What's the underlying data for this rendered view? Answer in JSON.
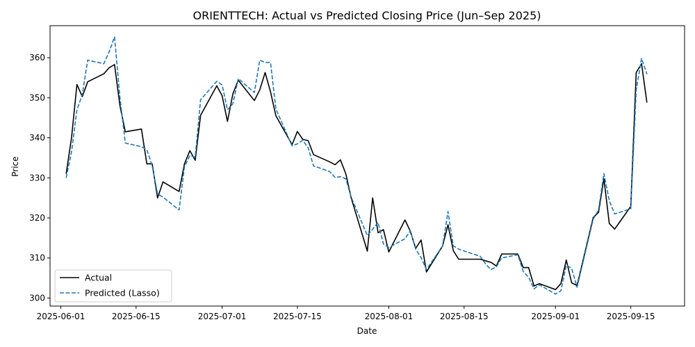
{
  "chart_data": {
    "type": "line",
    "title": "ORIENTTECH: Actual vs Predicted Closing Price (Jun–Sep 2025)",
    "xlabel": "Date",
    "ylabel": "Price",
    "xlim": [
      "2025-05-30",
      "2025-09-25"
    ],
    "ylim": [
      298,
      368
    ],
    "x_ticks": [
      "2025-06-01",
      "2025-06-15",
      "2025-07-01",
      "2025-07-15",
      "2025-08-01",
      "2025-08-15",
      "2025-09-01",
      "2025-09-15"
    ],
    "y_ticks": [
      300,
      310,
      320,
      330,
      340,
      350,
      360
    ],
    "grid": false,
    "legend_position": "lower-left",
    "series": [
      {
        "name": "Actual",
        "color": "#000000",
        "style": "solid",
        "points": [
          [
            "2025-06-02",
            331.0
          ],
          [
            "2025-06-03",
            340.0
          ],
          [
            "2025-06-04",
            353.3
          ],
          [
            "2025-06-05",
            350.3
          ],
          [
            "2025-06-06",
            354.0
          ],
          [
            "2025-06-09",
            356.0
          ],
          [
            "2025-06-10",
            357.5
          ],
          [
            "2025-06-11",
            358.3
          ],
          [
            "2025-06-12",
            348.0
          ],
          [
            "2025-06-13",
            341.5
          ],
          [
            "2025-06-16",
            342.2
          ],
          [
            "2025-06-17",
            333.5
          ],
          [
            "2025-06-18",
            333.5
          ],
          [
            "2025-06-19",
            325.0
          ],
          [
            "2025-06-20",
            329.0
          ],
          [
            "2025-06-23",
            326.6
          ],
          [
            "2025-06-24",
            333.5
          ],
          [
            "2025-06-25",
            336.8
          ],
          [
            "2025-06-26",
            334.4
          ],
          [
            "2025-06-27",
            345.6
          ],
          [
            "2025-06-30",
            353.0
          ],
          [
            "2025-07-01",
            350.5
          ],
          [
            "2025-07-02",
            344.1
          ],
          [
            "2025-07-03",
            351.0
          ],
          [
            "2025-07-04",
            354.4
          ],
          [
            "2025-07-07",
            349.3
          ],
          [
            "2025-07-08",
            352.0
          ],
          [
            "2025-07-09",
            356.3
          ],
          [
            "2025-07-10",
            351.5
          ],
          [
            "2025-07-11",
            345.5
          ],
          [
            "2025-07-14",
            338.3
          ],
          [
            "2025-07-15",
            341.6
          ],
          [
            "2025-07-16",
            339.6
          ],
          [
            "2025-07-17",
            339.3
          ],
          [
            "2025-07-18",
            335.8
          ],
          [
            "2025-07-21",
            334.0
          ],
          [
            "2025-07-22",
            333.3
          ],
          [
            "2025-07-23",
            334.5
          ],
          [
            "2025-07-24",
            331.0
          ],
          [
            "2025-07-25",
            325.0
          ],
          [
            "2025-07-28",
            311.7
          ],
          [
            "2025-07-29",
            325.0
          ],
          [
            "2025-07-30",
            316.3
          ],
          [
            "2025-07-31",
            317.1
          ],
          [
            "2025-08-01",
            311.5
          ],
          [
            "2025-08-04",
            319.5
          ],
          [
            "2025-08-05",
            316.7
          ],
          [
            "2025-08-06",
            312.4
          ],
          [
            "2025-08-07",
            314.5
          ],
          [
            "2025-08-08",
            306.5
          ],
          [
            "2025-08-11",
            313.0
          ],
          [
            "2025-08-12",
            318.3
          ],
          [
            "2025-08-13",
            311.8
          ],
          [
            "2025-08-14",
            309.7
          ],
          [
            "2025-08-18",
            309.7
          ],
          [
            "2025-08-19",
            309.3
          ],
          [
            "2025-08-20",
            308.9
          ],
          [
            "2025-08-21",
            308.0
          ],
          [
            "2025-08-22",
            311.0
          ],
          [
            "2025-08-25",
            311.0
          ],
          [
            "2025-08-26",
            307.6
          ],
          [
            "2025-08-27",
            307.6
          ],
          [
            "2025-08-28",
            303.0
          ],
          [
            "2025-08-29",
            303.6
          ],
          [
            "2025-09-01",
            302.1
          ],
          [
            "2025-09-02",
            303.6
          ],
          [
            "2025-09-03",
            309.5
          ],
          [
            "2025-09-04",
            303.8
          ],
          [
            "2025-09-05",
            303.1
          ],
          [
            "2025-09-08",
            320.1
          ],
          [
            "2025-09-09",
            321.4
          ],
          [
            "2025-09-10",
            329.8
          ],
          [
            "2025-09-11",
            318.6
          ],
          [
            "2025-09-12",
            317.2
          ],
          [
            "2025-09-15",
            322.9
          ],
          [
            "2025-09-16",
            356.3
          ],
          [
            "2025-09-17",
            358.5
          ],
          [
            "2025-09-18",
            348.8
          ]
        ]
      },
      {
        "name": "Predicted (Lasso)",
        "color": "#1f77b4",
        "style": "dashed",
        "points": [
          [
            "2025-06-02",
            330.0
          ],
          [
            "2025-06-03",
            336.5
          ],
          [
            "2025-06-04",
            347.0
          ],
          [
            "2025-06-05",
            350.8
          ],
          [
            "2025-06-06",
            359.4
          ],
          [
            "2025-06-09",
            358.5
          ],
          [
            "2025-06-10",
            361.5
          ],
          [
            "2025-06-11",
            365.2
          ],
          [
            "2025-06-12",
            350.0
          ],
          [
            "2025-06-13",
            338.7
          ],
          [
            "2025-06-16",
            337.8
          ],
          [
            "2025-06-17",
            337.0
          ],
          [
            "2025-06-18",
            333.0
          ],
          [
            "2025-06-19",
            326.0
          ],
          [
            "2025-06-20",
            325.2
          ],
          [
            "2025-06-23",
            322.0
          ],
          [
            "2025-06-24",
            332.8
          ],
          [
            "2025-06-25",
            335.6
          ],
          [
            "2025-06-26",
            335.2
          ],
          [
            "2025-06-27",
            349.5
          ],
          [
            "2025-06-30",
            354.1
          ],
          [
            "2025-07-01",
            353.2
          ],
          [
            "2025-07-02",
            347.0
          ],
          [
            "2025-07-03",
            348.5
          ],
          [
            "2025-07-04",
            354.8
          ],
          [
            "2025-07-07",
            351.3
          ],
          [
            "2025-07-08",
            359.4
          ],
          [
            "2025-07-09",
            358.8
          ],
          [
            "2025-07-10",
            358.8
          ],
          [
            "2025-07-11",
            347.2
          ],
          [
            "2025-07-14",
            338.0
          ],
          [
            "2025-07-15",
            338.5
          ],
          [
            "2025-07-16",
            339.4
          ],
          [
            "2025-07-17",
            337.5
          ],
          [
            "2025-07-18",
            333.0
          ],
          [
            "2025-07-21",
            331.6
          ],
          [
            "2025-07-22",
            330.1
          ],
          [
            "2025-07-23",
            330.3
          ],
          [
            "2025-07-24",
            329.8
          ],
          [
            "2025-07-25",
            325.2
          ],
          [
            "2025-07-28",
            315.6
          ],
          [
            "2025-07-29",
            317.2
          ],
          [
            "2025-07-30",
            318.9
          ],
          [
            "2025-07-31",
            313.5
          ],
          [
            "2025-08-01",
            312.6
          ],
          [
            "2025-08-04",
            314.8
          ],
          [
            "2025-08-05",
            316.8
          ],
          [
            "2025-08-06",
            312.2
          ],
          [
            "2025-08-07",
            310.1
          ],
          [
            "2025-08-08",
            307.1
          ],
          [
            "2025-08-11",
            313.0
          ],
          [
            "2025-08-12",
            321.6
          ],
          [
            "2025-08-13",
            313.0
          ],
          [
            "2025-08-14",
            312.2
          ],
          [
            "2025-08-18",
            310.4
          ],
          [
            "2025-08-19",
            308.5
          ],
          [
            "2025-08-20",
            307.1
          ],
          [
            "2025-08-21",
            307.8
          ],
          [
            "2025-08-22",
            310.0
          ],
          [
            "2025-08-25",
            310.8
          ],
          [
            "2025-08-26",
            306.6
          ],
          [
            "2025-08-27",
            305.2
          ],
          [
            "2025-08-28",
            302.3
          ],
          [
            "2025-08-29",
            303.3
          ],
          [
            "2025-09-01",
            301.0
          ],
          [
            "2025-09-02",
            301.8
          ],
          [
            "2025-09-03",
            308.2
          ],
          [
            "2025-09-04",
            307.4
          ],
          [
            "2025-09-05",
            302.7
          ],
          [
            "2025-09-08",
            319.7
          ],
          [
            "2025-09-09",
            322.0
          ],
          [
            "2025-09-10",
            331.1
          ],
          [
            "2025-09-11",
            324.3
          ],
          [
            "2025-09-12",
            321.0
          ],
          [
            "2025-09-15",
            322.3
          ],
          [
            "2025-09-16",
            352.0
          ],
          [
            "2025-09-17",
            359.8
          ],
          [
            "2025-09-18",
            355.9
          ]
        ]
      }
    ]
  }
}
